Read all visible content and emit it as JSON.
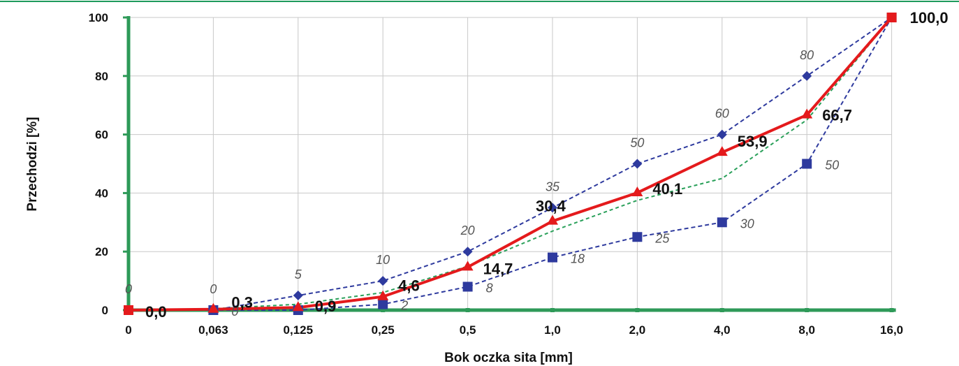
{
  "chart_data": {
    "type": "line",
    "xlabel": "Bok oczka sita  [mm]",
    "ylabel": "Przechodzi   [%]",
    "categories": [
      "0",
      "0,063",
      "0,125",
      "0,25",
      "0,5",
      "1,0",
      "2,0",
      "4,0",
      "8,0",
      "16,0"
    ],
    "ylim": [
      0,
      100
    ],
    "yticks": [
      "0",
      "20",
      "40",
      "60",
      "80",
      "100"
    ],
    "grid": true,
    "colors": {
      "upper": "#2e3a9e",
      "lower": "#2e3a9e",
      "actual": "#e41a1c",
      "reference": "#2aa05a",
      "axis": "#2e9a58",
      "grid": "#c8c8c8",
      "topRule": "#1e9a5c"
    },
    "series": [
      {
        "key": "upper",
        "marker": "diamond",
        "values": [
          0,
          0,
          5,
          10,
          20,
          35,
          50,
          60,
          80,
          100
        ],
        "labels": [
          "0",
          "0",
          "5",
          "10",
          "20",
          "35",
          "50",
          "60",
          "80",
          ""
        ]
      },
      {
        "key": "lower",
        "marker": "square",
        "values": [
          0,
          0,
          0,
          2,
          8,
          18,
          25,
          30,
          50,
          100
        ],
        "labels": [
          "",
          "0",
          "",
          "2",
          "8",
          "18",
          "25",
          "30",
          "50",
          ""
        ]
      },
      {
        "key": "reference",
        "marker": "none",
        "values": [
          0,
          0.5,
          2,
          6,
          15,
          27,
          37.5,
          45,
          65,
          100
        ],
        "labels": []
      },
      {
        "key": "actual",
        "marker": "triangle",
        "values": [
          0.0,
          0.3,
          0.9,
          4.6,
          14.7,
          30.4,
          40.1,
          53.9,
          66.7,
          100.0
        ],
        "labels": [
          "0,0",
          "0,3",
          "0,9",
          "4,6",
          "14,7",
          "30,4",
          "40,1",
          "53,9",
          "66,7",
          "100,0"
        ]
      }
    ]
  }
}
